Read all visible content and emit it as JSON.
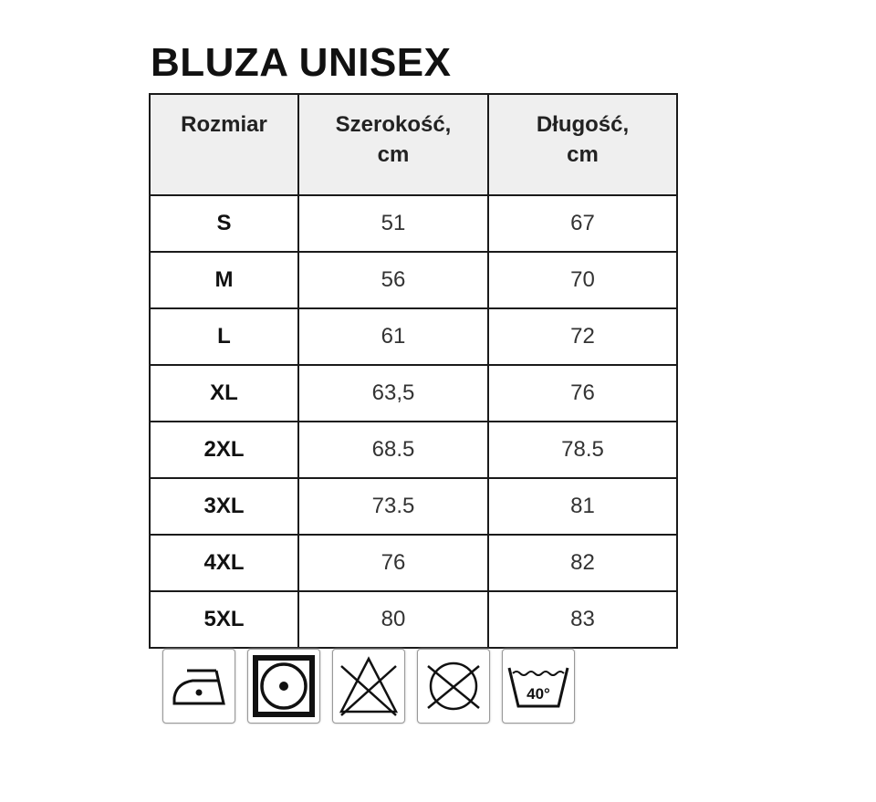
{
  "title": "BLUZA UNISEX",
  "table": {
    "headers": [
      "Rozmiar",
      "Szerokość,\ncm",
      "Długość,\ncm"
    ],
    "header_lines": [
      [
        "Rozmiar"
      ],
      [
        "Szerokość,",
        "cm"
      ],
      [
        "Długość,",
        "cm"
      ]
    ],
    "rows": [
      [
        "S",
        "51",
        "67"
      ],
      [
        "M",
        "56",
        "70"
      ],
      [
        "L",
        "61",
        "72"
      ],
      [
        "XL",
        "63,5",
        "76"
      ],
      [
        "2XL",
        "68.5",
        "78.5"
      ],
      [
        "3XL",
        "73.5",
        "81"
      ],
      [
        "4XL",
        "76",
        "82"
      ],
      [
        "5XL",
        "80",
        "83"
      ]
    ]
  },
  "care_icons": [
    {
      "icon": "iron-low-temperature-icon"
    },
    {
      "icon": "tumble-dry-low-icon"
    },
    {
      "icon": "do-not-bleach-icon"
    },
    {
      "icon": "do-not-dry-clean-icon"
    },
    {
      "icon": "wash-40-icon",
      "label": "40°"
    }
  ]
}
